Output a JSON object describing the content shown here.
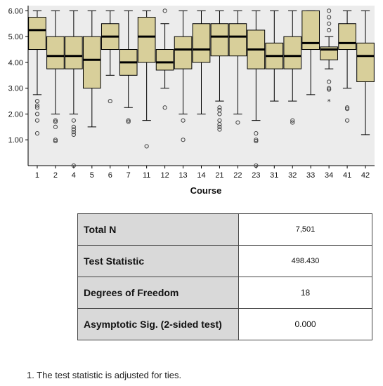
{
  "chart_data": {
    "type": "boxplot",
    "xlabel": "Course",
    "ylabel": "",
    "ylim": [
      0.0,
      6.2
    ],
    "yticks": [
      "1.00",
      "2.00",
      "3.00",
      "4.00",
      "5.00",
      "6.00"
    ],
    "colors": {
      "box": "#d8cf9a",
      "plot_bg": "#ececec",
      "median": "#000000"
    },
    "categories": [
      "1",
      "2",
      "4",
      "5",
      "6",
      "7",
      "11",
      "12",
      "13",
      "14",
      "21",
      "22",
      "23",
      "31",
      "32",
      "33",
      "34",
      "41",
      "42"
    ],
    "boxes": [
      {
        "whisker_low": 2.75,
        "q1": 4.5,
        "median": 5.25,
        "q3": 5.75,
        "whisker_high": 6.0,
        "outliers": [
          2.5,
          2.33,
          2.25,
          2.0,
          1.75,
          1.25
        ]
      },
      {
        "whisker_low": 2.0,
        "q1": 3.75,
        "median": 4.25,
        "q3": 5.0,
        "whisker_high": 6.0,
        "outliers": [
          1.75,
          1.7,
          1.5,
          1.0,
          0.95
        ]
      },
      {
        "whisker_low": 2.0,
        "q1": 3.75,
        "median": 4.25,
        "q3": 5.0,
        "whisker_high": 6.0,
        "outliers": [
          1.75,
          1.5,
          1.4,
          1.3,
          1.2,
          0.0
        ]
      },
      {
        "whisker_low": 1.5,
        "q1": 3.0,
        "median": 4.1,
        "q3": 5.0,
        "whisker_high": 6.0,
        "outliers": []
      },
      {
        "whisker_low": 3.5,
        "q1": 4.5,
        "median": 5.0,
        "q3": 5.5,
        "whisker_high": 6.0,
        "outliers": [
          2.5
        ]
      },
      {
        "whisker_low": 2.25,
        "q1": 3.5,
        "median": 4.0,
        "q3": 4.5,
        "whisker_high": 6.0,
        "outliers": [
          1.75,
          1.7
        ]
      },
      {
        "whisker_low": 1.75,
        "q1": 4.0,
        "median": 5.0,
        "q3": 5.75,
        "whisker_high": 6.0,
        "outliers": [
          0.75
        ]
      },
      {
        "whisker_low": 3.0,
        "q1": 3.7,
        "median": 4.0,
        "q3": 4.5,
        "whisker_high": 5.5,
        "outliers": [
          6.0,
          2.25
        ]
      },
      {
        "whisker_low": 2.0,
        "q1": 3.75,
        "median": 4.5,
        "q3": 5.0,
        "whisker_high": 6.0,
        "outliers": [
          1.75,
          1.0
        ]
      },
      {
        "whisker_low": 2.0,
        "q1": 4.0,
        "median": 4.5,
        "q3": 5.5,
        "whisker_high": 6.0,
        "outliers": []
      },
      {
        "whisker_low": 2.5,
        "q1": 4.25,
        "median": 5.0,
        "q3": 5.5,
        "whisker_high": 6.0,
        "outliers": [
          2.25,
          2.15,
          2.0,
          1.75,
          1.6,
          1.5,
          1.4
        ]
      },
      {
        "whisker_low": 2.0,
        "q1": 4.25,
        "median": 5.0,
        "q3": 5.5,
        "whisker_high": 6.0,
        "outliers": [
          1.67
        ]
      },
      {
        "whisker_low": 1.75,
        "q1": 3.75,
        "median": 4.5,
        "q3": 5.25,
        "whisker_high": 6.0,
        "outliers": [
          1.25,
          1.0,
          0.95,
          0.0
        ]
      },
      {
        "whisker_low": 2.5,
        "q1": 3.75,
        "median": 4.25,
        "q3": 4.75,
        "whisker_high": 6.0,
        "outliers": []
      },
      {
        "whisker_low": 2.5,
        "q1": 3.75,
        "median": 4.25,
        "q3": 5.0,
        "whisker_high": 6.0,
        "outliers": [
          1.75,
          1.67
        ]
      },
      {
        "whisker_low": 2.75,
        "q1": 4.5,
        "median": 4.75,
        "q3": 6.0,
        "whisker_high": 6.0,
        "outliers": []
      },
      {
        "whisker_low": 3.75,
        "q1": 4.1,
        "median": 4.5,
        "q3": 4.6,
        "whisker_high": 5.0,
        "outliers": [
          6.0,
          5.75,
          5.5,
          5.25,
          3.25,
          3.0,
          2.95
        ],
        "extremes": [
          2.5
        ]
      },
      {
        "whisker_low": 3.0,
        "q1": 4.5,
        "median": 4.75,
        "q3": 5.5,
        "whisker_high": 6.0,
        "outliers": [
          2.25,
          2.2,
          1.75
        ]
      },
      {
        "whisker_low": 1.2,
        "q1": 3.25,
        "median": 4.25,
        "q3": 4.75,
        "whisker_high": 6.0,
        "outliers": []
      }
    ]
  },
  "stats_table": {
    "rows": [
      {
        "label": "Total N",
        "value": "7,501"
      },
      {
        "label": "Test Statistic",
        "value": "498.430"
      },
      {
        "label": "Degrees of Freedom",
        "value": "18"
      },
      {
        "label": "Asymptotic Sig. (2-sided test)",
        "value": "0.000"
      }
    ]
  },
  "footnote": "1.  The test statistic is adjusted for ties."
}
